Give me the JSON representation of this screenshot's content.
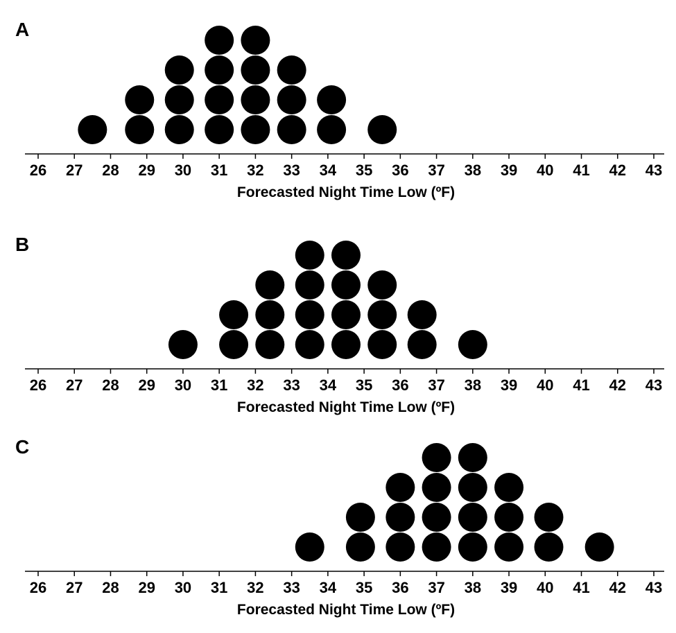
{
  "colors": {
    "dot": "#000000",
    "axis": "#000000",
    "background": "#ffffff"
  },
  "chart_data": [
    {
      "panel_label": "A",
      "type": "scatter",
      "subtype": "dot plot",
      "xlabel": "Forecasted Night Time Low (ºF)",
      "xlim": [
        26,
        43
      ],
      "xticks": [
        26,
        27,
        28,
        29,
        30,
        31,
        32,
        33,
        34,
        35,
        36,
        37,
        38,
        39,
        40,
        41,
        42,
        43
      ],
      "columns": [
        {
          "x": 27.5,
          "count": 1
        },
        {
          "x": 28.8,
          "count": 2
        },
        {
          "x": 29.9,
          "count": 3
        },
        {
          "x": 31.0,
          "count": 4
        },
        {
          "x": 32.0,
          "count": 4
        },
        {
          "x": 33.0,
          "count": 3
        },
        {
          "x": 34.1,
          "count": 2
        },
        {
          "x": 35.5,
          "count": 1
        }
      ]
    },
    {
      "panel_label": "B",
      "type": "scatter",
      "subtype": "dot plot",
      "xlabel": "Forecasted Night Time Low (ºF)",
      "xlim": [
        26,
        43
      ],
      "xticks": [
        26,
        27,
        28,
        29,
        30,
        31,
        32,
        33,
        34,
        35,
        36,
        37,
        38,
        39,
        40,
        41,
        42,
        43
      ],
      "columns": [
        {
          "x": 30.0,
          "count": 1
        },
        {
          "x": 31.4,
          "count": 2
        },
        {
          "x": 32.4,
          "count": 3
        },
        {
          "x": 33.5,
          "count": 4
        },
        {
          "x": 34.5,
          "count": 4
        },
        {
          "x": 35.5,
          "count": 3
        },
        {
          "x": 36.6,
          "count": 2
        },
        {
          "x": 38.0,
          "count": 1
        }
      ]
    },
    {
      "panel_label": "C",
      "type": "scatter",
      "subtype": "dot plot",
      "xlabel": "Forecasted Night Time Low (ºF)",
      "xlim": [
        26,
        43
      ],
      "xticks": [
        26,
        27,
        28,
        29,
        30,
        31,
        32,
        33,
        34,
        35,
        36,
        37,
        38,
        39,
        40,
        41,
        42,
        43
      ],
      "columns": [
        {
          "x": 33.5,
          "count": 1
        },
        {
          "x": 34.9,
          "count": 2
        },
        {
          "x": 36.0,
          "count": 3
        },
        {
          "x": 37.0,
          "count": 4
        },
        {
          "x": 38.0,
          "count": 4
        },
        {
          "x": 39.0,
          "count": 3
        },
        {
          "x": 40.1,
          "count": 2
        },
        {
          "x": 41.5,
          "count": 1
        }
      ]
    }
  ]
}
